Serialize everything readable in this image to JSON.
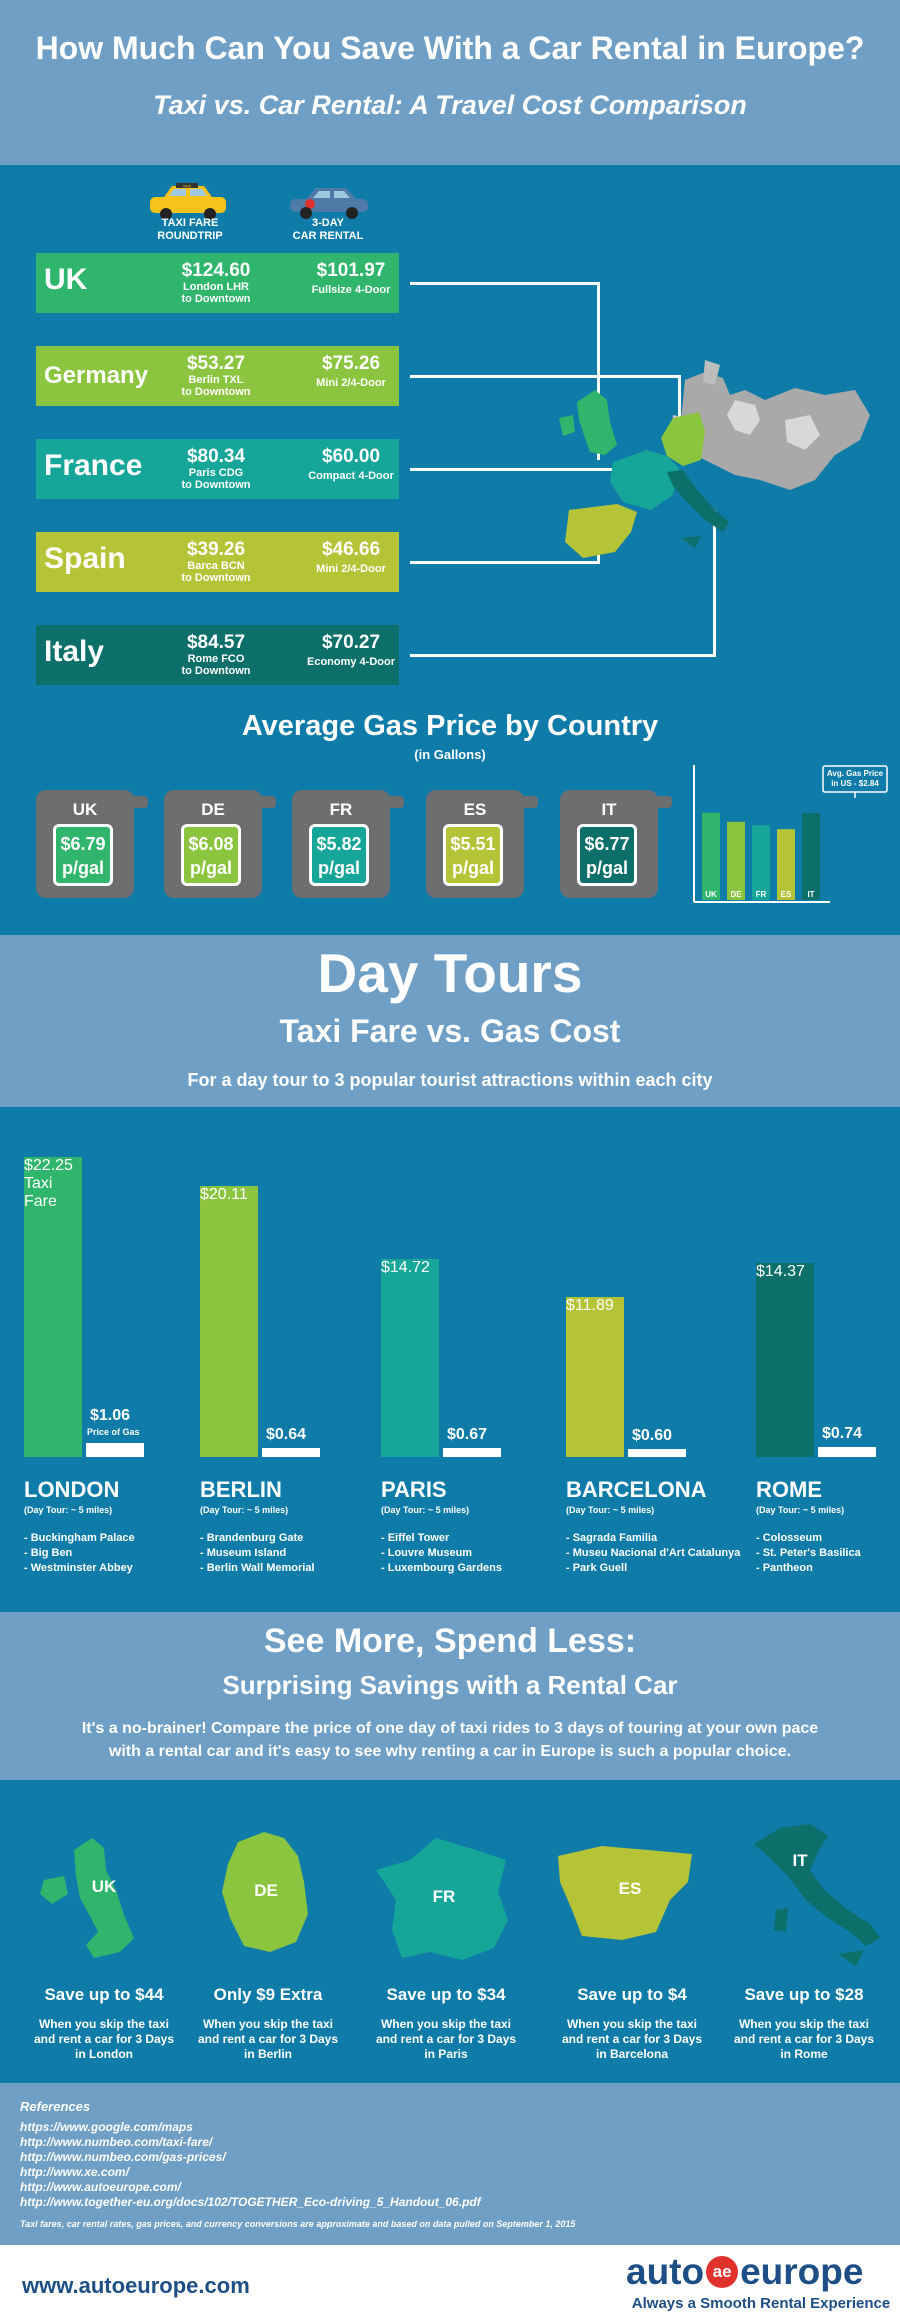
{
  "header": {
    "title": "How Much Can You Save With a Car Rental in Europe?",
    "subtitle": "Taxi vs. Car Rental: A Travel Cost Comparison"
  },
  "comparison": {
    "col_taxi": [
      "TAXI FARE",
      "ROUNDTRIP"
    ],
    "col_car": [
      "3-DAY",
      "CAR RENTAL"
    ],
    "taxi_sign": "TAXI",
    "rows": [
      {
        "country": "UK",
        "taxi_price": "$124.60",
        "taxi_route": [
          "London LHR",
          "to Downtown"
        ],
        "car_price": "$101.97",
        "car_type": "Fullsize 4-Door",
        "color": "#2fb56c"
      },
      {
        "country": "Germany",
        "taxi_price": "$53.27",
        "taxi_route": [
          "Berlin TXL",
          "to Downtown"
        ],
        "car_price": "$75.26",
        "car_type": "Mini 2/4-Door",
        "color": "#8bc53f"
      },
      {
        "country": "France",
        "taxi_price": "$80.34",
        "taxi_route": [
          "Paris CDG",
          "to Downtown"
        ],
        "car_price": "$60.00",
        "car_type": "Compact 4-Door",
        "color": "#16a699"
      },
      {
        "country": "Spain",
        "taxi_price": "$39.26",
        "taxi_route": [
          "Barca BCN",
          "to Downtown"
        ],
        "car_price": "$46.66",
        "car_type": "Mini 2/4-Door",
        "color": "#b5c437"
      },
      {
        "country": "Italy",
        "taxi_price": "$84.57",
        "taxi_route": [
          "Rome FCO",
          "to Downtown"
        ],
        "car_price": "$70.27",
        "car_type": "Economy 4-Door",
        "color": "#0d6f69"
      }
    ]
  },
  "gas": {
    "title": "Average Gas Price by Country",
    "subtitle": "(in Gallons)",
    "cans": [
      {
        "code": "UK",
        "price": "$6.79",
        "unit": "p/gal",
        "color": "#2fb56c"
      },
      {
        "code": "DE",
        "price": "$6.08",
        "unit": "p/gal",
        "color": "#8bc53f"
      },
      {
        "code": "FR",
        "price": "$5.82",
        "unit": "p/gal",
        "color": "#16a699"
      },
      {
        "code": "ES",
        "price": "$5.51",
        "unit": "p/gal",
        "color": "#b5c437"
      },
      {
        "code": "IT",
        "price": "$6.77",
        "unit": "p/gal",
        "color": "#0d6f69"
      }
    ],
    "us_note": [
      "Avg. Gas Price",
      "in US - $2.84"
    ]
  },
  "chart_data": [
    {
      "type": "bar",
      "categories": [
        "UK",
        "DE",
        "FR",
        "ES",
        "IT"
      ],
      "values": [
        6.79,
        6.08,
        5.82,
        5.51,
        6.77
      ],
      "title": "Average Gas Price by Country",
      "ylabel": "",
      "reference_line": 2.84
    },
    {
      "type": "bar",
      "categories": [
        "LONDON",
        "BERLIN",
        "PARIS",
        "BARCELONA",
        "ROME"
      ],
      "series": [
        {
          "name": "Taxi Fare",
          "values": [
            22.25,
            20.11,
            14.72,
            11.89,
            14.37
          ]
        },
        {
          "name": "Price of Gas",
          "values": [
            1.06,
            0.64,
            0.67,
            0.6,
            0.74
          ]
        }
      ]
    }
  ],
  "day_tours": {
    "title": "Day Tours",
    "subtitle": "Taxi Fare vs. Gas Cost",
    "desc": "For a day tour to 3 popular tourist attractions within each city",
    "taxi_caption": "Taxi Fare",
    "gas_caption": "Price of Gas",
    "cities": [
      {
        "name": "LONDON",
        "dist": "(Day Tour: ~ 5 miles)",
        "taxi": "$22.25",
        "gas": "$1.06",
        "color": "#2fb56c",
        "sights": [
          "- Buckingham Palace",
          "- Big Ben",
          "- Westminster Abbey"
        ]
      },
      {
        "name": "BERLIN",
        "dist": "(Day Tour: ~ 5 miles)",
        "taxi": "$20.11",
        "gas": "$0.64",
        "color": "#8bc53f",
        "sights": [
          "- Brandenburg Gate",
          "- Museum Island",
          "- Berlin Wall Memorial"
        ]
      },
      {
        "name": "PARIS",
        "dist": "(Day Tour: ~ 5 miles)",
        "taxi": "$14.72",
        "gas": "$0.67",
        "color": "#16a699",
        "sights": [
          "- Eiffel Tower",
          "- Louvre Museum",
          "- Luxembourg Gardens"
        ]
      },
      {
        "name": "BARCELONA",
        "dist": "(Day Tour: ~ 5 miles)",
        "taxi": "$11.89",
        "gas": "$0.60",
        "color": "#b5c437",
        "sights": [
          "- Sagrada Familia",
          "- Museu Nacional d'Art Catalunya",
          "- Park Guell"
        ]
      },
      {
        "name": "ROME",
        "dist": "(Day Tour: ~ 5 miles)",
        "taxi": "$14.37",
        "gas": "$0.74",
        "color": "#0d6f69",
        "sights": [
          "- Colosseum",
          "- St. Peter's Basilica",
          "- Pantheon"
        ]
      }
    ]
  },
  "see_more": {
    "title": "See More, Spend Less:",
    "subtitle": "Surprising Savings with a Rental Car",
    "desc_line1": "It's a no-brainer! Compare the price of one day of taxi rides to 3 days of touring at your own pace",
    "desc_line2": "with a rental car and it's easy to see why renting a car in Europe is such a popular choice."
  },
  "savings": [
    {
      "code": "UK",
      "save": "Save up to $44",
      "desc": [
        "When you skip the taxi",
        "and rent a car for 3 Days",
        "in London"
      ],
      "color": "#2fb56c"
    },
    {
      "code": "DE",
      "save": "Only $9 Extra",
      "desc": [
        "When you skip the taxi",
        "and rent a car for 3 Days",
        "in Berlin"
      ],
      "color": "#8bc53f"
    },
    {
      "code": "FR",
      "save": "Save up to $34",
      "desc": [
        "When you skip the taxi",
        "and rent a car for 3 Days",
        "in Paris"
      ],
      "color": "#16a699"
    },
    {
      "code": "ES",
      "save": "Save up to $4",
      "desc": [
        "When you skip the taxi",
        "and rent a car for 3 Days",
        "in Barcelona"
      ],
      "color": "#b5c437"
    },
    {
      "code": "IT",
      "save": "Save up to $28",
      "desc": [
        "When you skip the taxi",
        "and rent a car for 3 Days",
        "in Rome"
      ],
      "color": "#0d6f69"
    }
  ],
  "references": {
    "title": "References",
    "links": [
      "https://www.google.com/maps",
      "http://www.numbeo.com/taxi-fare/",
      "http://www.numbeo.com/gas-prices/",
      "http://www.xe.com/",
      "http://www.autoeurope.com/",
      "http://www.together-eu.org/docs/102/TOGETHER_Eco-driving_5_Handout_06.pdf"
    ],
    "disclaimer": "Taxi fares, car rental rates, gas prices, and currency conversions are approximate and based on data pulled on September 1, 2015"
  },
  "footer": {
    "url": "www.autoeurope.com",
    "logo_left": "auto",
    "logo_right": "europe",
    "logo_mark": "ae",
    "tagline": "Always a Smooth Rental Experience"
  }
}
